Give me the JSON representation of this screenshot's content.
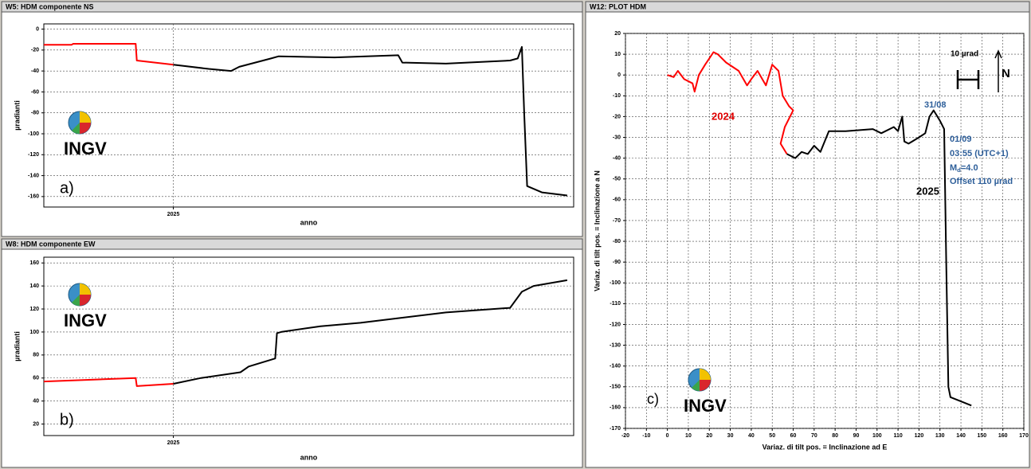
{
  "chart_data": [
    {
      "type": "line",
      "title": "W5: HDM componente NS",
      "x_label": "anno",
      "y_label": "µradianti",
      "annotations": [
        "a)",
        "INGV"
      ],
      "xlim": [
        2024.78,
        2025.68
      ],
      "xticks": [
        2025
      ],
      "ylim": [
        -170,
        5
      ],
      "yticks": [
        0,
        -20,
        -40,
        -60,
        -80,
        -100,
        -120,
        -140,
        -160
      ],
      "grid": true,
      "series": [
        {
          "color": "#ff0000",
          "x": [
            2024.78,
            2024.827,
            2024.83,
            2024.936,
            2024.938,
            2025.0
          ],
          "values": [
            -15,
            -15,
            -14,
            -14,
            -30,
            -34
          ]
        },
        {
          "color": "#000000",
          "x": [
            2025.0,
            2025.06,
            2025.098,
            2025.112,
            2025.166,
            2025.179,
            2025.274,
            2025.382,
            2025.389,
            2025.463,
            2025.572,
            2025.585,
            2025.592,
            2025.596,
            2025.601,
            2025.626,
            2025.669
          ],
          "values": [
            -34,
            -38,
            -40,
            -36,
            -28,
            -26,
            -27,
            -25,
            -32,
            -33,
            -30,
            -28,
            -17,
            -80,
            -150,
            -156,
            -159
          ]
        }
      ]
    },
    {
      "type": "line",
      "title": "W8: HDM componente EW",
      "x_label": "anno",
      "y_label": "µradianti",
      "annotations": [
        "b)",
        "INGV"
      ],
      "xlim": [
        2024.78,
        2025.68
      ],
      "xticks": [
        2025
      ],
      "ylim": [
        10,
        165
      ],
      "yticks": [
        20,
        40,
        60,
        80,
        100,
        120,
        140,
        160
      ],
      "grid": true,
      "series": [
        {
          "color": "#ff0000",
          "x": [
            2024.78,
            2024.936,
            2024.938,
            2025.0
          ],
          "values": [
            57,
            60,
            53,
            55
          ]
        },
        {
          "color": "#000000",
          "x": [
            2025.0,
            2025.047,
            2025.114,
            2025.128,
            2025.173,
            2025.176,
            2025.183,
            2025.25,
            2025.318,
            2025.382,
            2025.463,
            2025.572,
            2025.592,
            2025.612,
            2025.669
          ],
          "values": [
            55,
            60,
            65,
            70,
            77,
            99,
            100,
            105,
            108,
            112,
            117,
            121,
            135,
            140,
            145
          ]
        }
      ]
    },
    {
      "type": "line",
      "title": "W12: PLOT HDM",
      "x_label": "Variaz. di tilt pos. = Inclinazione ad E",
      "y_label": "Variaz. di tilt pos. = Inclinazione a N",
      "annotations": [
        "2024",
        "2025",
        "31/08",
        "01/09",
        "03:55 (UTC+1)",
        [
          "M",
          "d",
          "=4.0"
        ],
        "Offset 110 µrad",
        "10 µrad",
        "N",
        "c)",
        "INGV"
      ],
      "xlim": [
        -20,
        170
      ],
      "xticks": [
        -20,
        -10,
        0,
        10,
        20,
        30,
        40,
        50,
        60,
        70,
        80,
        90,
        100,
        110,
        120,
        130,
        140,
        150,
        160,
        170
      ],
      "ylim": [
        -170,
        20
      ],
      "yticks": [
        20,
        10,
        0,
        -10,
        -20,
        -30,
        -40,
        -50,
        -60,
        -70,
        -80,
        -90,
        -100,
        -110,
        -120,
        -130,
        -140,
        -150,
        -160,
        -170
      ],
      "grid": true,
      "series": [
        {
          "color": "#ff0000",
          "x": [
            0,
            3,
            5,
            8,
            12,
            13,
            15,
            18,
            20,
            22,
            24,
            28,
            34,
            38,
            40,
            43,
            47,
            50,
            53,
            55,
            58,
            60,
            56,
            54,
            57
          ],
          "values": [
            0,
            -1,
            2,
            -2,
            -4,
            -8,
            0,
            5,
            8,
            11,
            10,
            6,
            2,
            -5,
            -2,
            2,
            -5,
            5,
            2,
            -10,
            -15,
            -17,
            -25,
            -33,
            -38
          ]
        },
        {
          "color": "#000000",
          "x": [
            57,
            61,
            64,
            67,
            70,
            73,
            77,
            85,
            98,
            102,
            108,
            110,
            112,
            113,
            115,
            120,
            123,
            125,
            127,
            130,
            132,
            133,
            134,
            135,
            140,
            145
          ],
          "values": [
            -38,
            -40,
            -37,
            -38,
            -34,
            -37,
            -27,
            -27,
            -26,
            -28,
            -25,
            -27,
            -20,
            -32,
            -33,
            -30,
            -28,
            -20,
            -17,
            -22,
            -26,
            -90,
            -150,
            -155,
            -157,
            -159
          ]
        }
      ]
    }
  ]
}
